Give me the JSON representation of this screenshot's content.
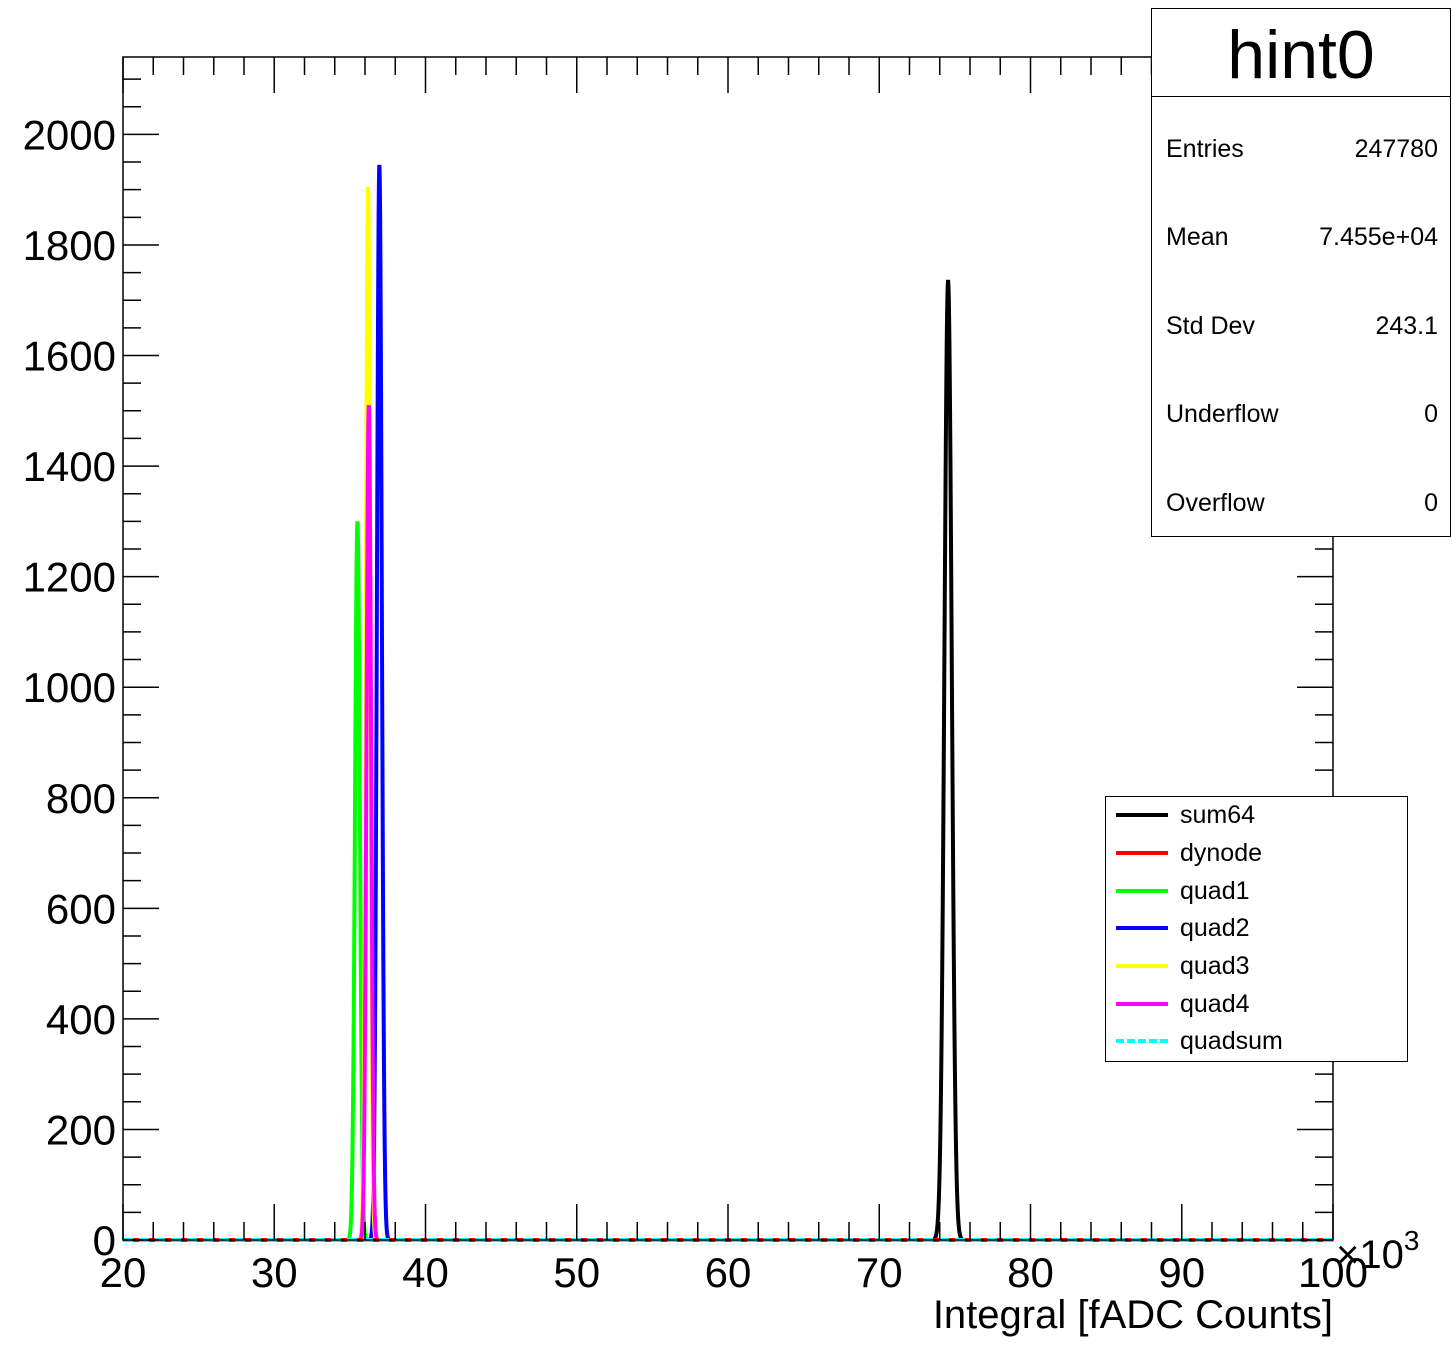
{
  "chart_data": {
    "type": "line",
    "title": "hint0",
    "xlabel": "Integral [fADC Counts]",
    "ylabel": "",
    "x_multiplier_label": "×10",
    "x_multiplier_exponent": "3",
    "xlim": [
      20,
      100
    ],
    "ylim": [
      0,
      2140
    ],
    "x_ticks": [
      20,
      30,
      40,
      50,
      60,
      70,
      80,
      90,
      100
    ],
    "y_ticks": [
      0,
      200,
      400,
      600,
      800,
      1000,
      1200,
      1400,
      1600,
      1800,
      2000
    ],
    "series": [
      {
        "name": "sum64",
        "color": "#000000",
        "dashed": false,
        "peak_x": 74.55,
        "peak_y": 1735,
        "sigma": 0.243
      },
      {
        "name": "dynode",
        "color": "#ff0000",
        "dashed": false,
        "peak_x": 36.6,
        "peak_y": 0,
        "sigma": 0.2
      },
      {
        "name": "quad1",
        "color": "#00ff00",
        "dashed": false,
        "peak_x": 35.5,
        "peak_y": 1300,
        "sigma": 0.16
      },
      {
        "name": "quad2",
        "color": "#0000ff",
        "dashed": false,
        "peak_x": 36.95,
        "peak_y": 1945,
        "sigma": 0.16
      },
      {
        "name": "quad3",
        "color": "#ffff00",
        "dashed": false,
        "peak_x": 36.2,
        "peak_y": 1905,
        "sigma": 0.14
      },
      {
        "name": "quad4",
        "color": "#ff00ff",
        "dashed": false,
        "peak_x": 36.25,
        "peak_y": 1510,
        "sigma": 0.15
      },
      {
        "name": "quadsum",
        "color": "#00ffff",
        "dashed": true,
        "peak_x": 74.55,
        "peak_y": 0,
        "sigma": 0.243
      }
    ]
  },
  "stats": {
    "title": "hint0",
    "rows": [
      {
        "label": "Entries",
        "value": "247780"
      },
      {
        "label": "Mean",
        "value": "7.455e+04"
      },
      {
        "label": "Std Dev",
        "value": "243.1"
      },
      {
        "label": "Underflow",
        "value": "0"
      },
      {
        "label": "Overflow",
        "value": "0"
      }
    ]
  }
}
